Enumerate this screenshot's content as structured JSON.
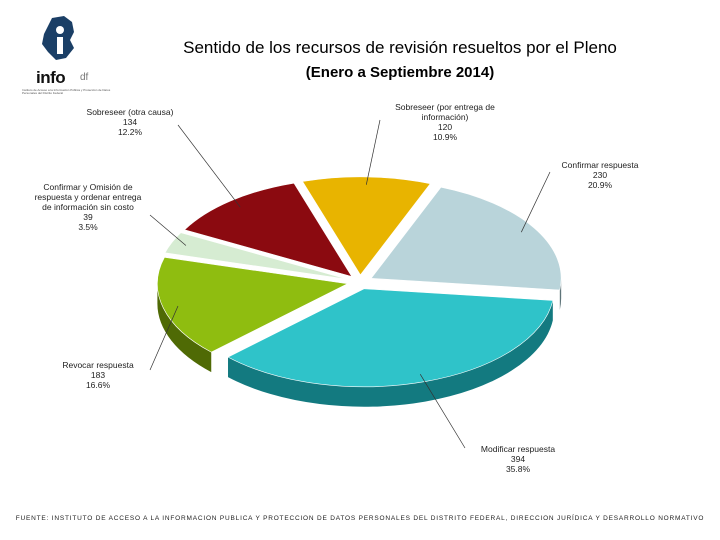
{
  "header": {
    "logo_word": "info",
    "logo_suffix": "df",
    "logo_tagline": "Instituto de Acceso a la Información Pública y Protección de Datos Personales del Distrito Federal",
    "title": "Sentido de los recursos de revisión resueltos por el Pleno",
    "subtitle": "(Enero a Septiembre 2014)"
  },
  "chart_data": {
    "type": "pie",
    "title": "Sentido de los recursos de revisión resueltos por el Pleno",
    "subtitle": "(Enero a Septiembre 2014)",
    "three_d": true,
    "slices": [
      {
        "label": [
          "Sobreseer (por entrega de",
          "información)"
        ],
        "value": 120,
        "percent": "10.9%",
        "color": "#e8b400",
        "dark": "#8a6a00"
      },
      {
        "label": [
          "Confirmar respuesta"
        ],
        "value": 230,
        "percent": "20.9%",
        "color": "#b9d4da",
        "dark": "#5e7479"
      },
      {
        "label": [
          "Modificar respuesta"
        ],
        "value": 394,
        "percent": "35.8%",
        "color": "#2fc3c9",
        "dark": "#137a80"
      },
      {
        "label": [
          "Revocar respuesta"
        ],
        "value": 183,
        "percent": "16.6%",
        "color": "#8fbd10",
        "dark": "#4f6a05"
      },
      {
        "label": [
          "Confirmar y Omisión de",
          "respuesta y ordenar entrega",
          "de información sin costo"
        ],
        "value": 39,
        "percent": "3.5%",
        "color": "#d6ecd2",
        "dark": "#7f9a7b"
      },
      {
        "label": [
          "Sobreseer (otra causa)"
        ],
        "value": 134,
        "percent": "12.2%",
        "color": "#8b0a10",
        "dark": "#4a0406"
      }
    ]
  },
  "footer": "FUENTE: INSTITUTO DE ACCESO A LA INFORMACION PUBLICA Y PROTECCION DE DATOS PERSONALES DEL DISTRITO FEDERAL, DIRECCION JURÍDICA Y DESARROLLO NORMATIVO"
}
